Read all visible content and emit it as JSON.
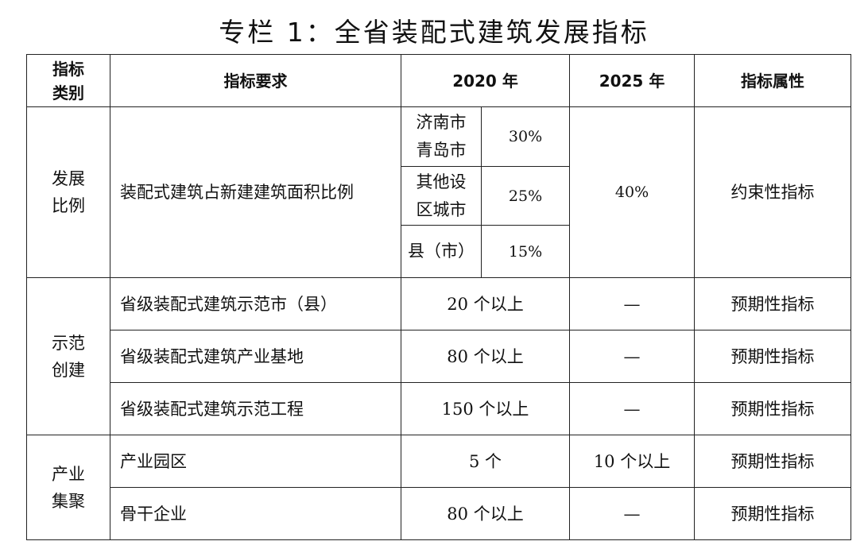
{
  "title": "专栏 1：全省装配式建筑发展指标",
  "headers": {
    "category_line1": "指标",
    "category_line2": "类别",
    "requirement": "指标要求",
    "y2020": "2020 年",
    "y2025": "2025 年",
    "attribute": "指标属性"
  },
  "section1": {
    "category_line1": "发展",
    "category_line2": "比例",
    "requirement": "装配式建筑占新建建筑面积比例",
    "sub_rows": [
      {
        "region_line1": "济南市",
        "region_line2": "青岛市",
        "value": "30%"
      },
      {
        "region_line1": "其他设",
        "region_line2": "区城市",
        "value": "25%"
      },
      {
        "region_line1": "县（市）",
        "region_line2": "",
        "value": "15%"
      }
    ],
    "y2025": "40%",
    "attribute": "约束性指标"
  },
  "section2": {
    "category_line1": "示范",
    "category_line2": "创建",
    "rows": [
      {
        "requirement": "省级装配式建筑示范市（县）",
        "y2020": "20 个以上",
        "y2025": "—",
        "attribute": "预期性指标"
      },
      {
        "requirement": "省级装配式建筑产业基地",
        "y2020": "80 个以上",
        "y2025": "—",
        "attribute": "预期性指标"
      },
      {
        "requirement": "省级装配式建筑示范工程",
        "y2020": "150 个以上",
        "y2025": "—",
        "attribute": "预期性指标"
      }
    ]
  },
  "section3": {
    "category_line1": "产业",
    "category_line2": "集聚",
    "rows": [
      {
        "requirement": "产业园区",
        "y2020": "5 个",
        "y2025": "10 个以上",
        "attribute": "预期性指标"
      },
      {
        "requirement": "骨干企业",
        "y2020": "80 个以上",
        "y2025": "—",
        "attribute": "预期性指标"
      }
    ]
  }
}
